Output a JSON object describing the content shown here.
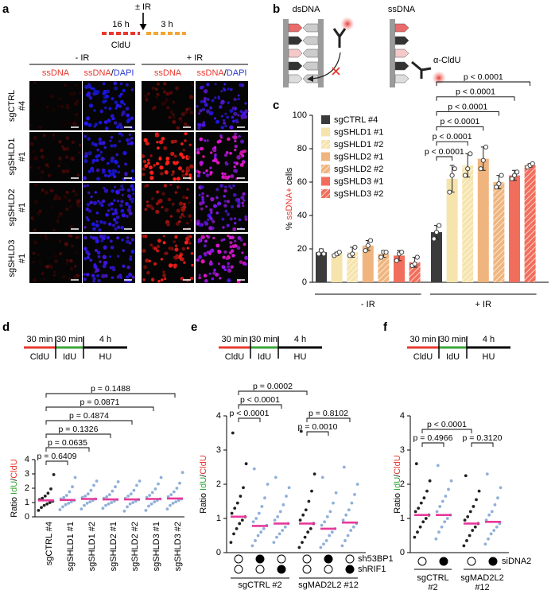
{
  "panel_a": {
    "label": "a",
    "treatment": "± IR",
    "times": [
      "16 h",
      "3 h"
    ],
    "pulse": "CldU",
    "conditions": [
      "- IR",
      "+ IR"
    ],
    "columns": [
      [
        "ssDNA"
      ],
      [
        "ssDNA",
        "/",
        "DAPI"
      ]
    ],
    "rows": [
      [
        "sgCTRL",
        "#4"
      ],
      [
        "sgSHLD1",
        "#1"
      ],
      [
        "sgSHLD2",
        "#1"
      ],
      [
        "sgSHLD3",
        "#1"
      ]
    ]
  },
  "panel_b": {
    "label": "b",
    "left": "dsDNA",
    "right": "ssDNA",
    "antibody": "α-CldU"
  },
  "chart_data": [
    {
      "type": "bar",
      "label": "c",
      "ylabel": [
        "% ",
        "ssDNA+",
        " cells"
      ],
      "ylabel_colors": [
        "#000000",
        "#e8382f",
        "#000000"
      ],
      "categories": [
        "- IR",
        "+ IR"
      ],
      "ylim": [
        0,
        100
      ],
      "yticks": [
        0,
        20,
        40,
        60,
        80,
        100
      ],
      "series": [
        {
          "name": "sgCTRL #4",
          "color": "#3b3b3b",
          "hatched": false,
          "values": [
            18,
            30
          ],
          "errors": [
            2,
            4
          ],
          "points": [
            [
              17,
              19,
              17
            ],
            [
              26,
              30,
              34
            ]
          ]
        },
        {
          "name": "sgSHLD1 #1",
          "color": "#f6e4ad",
          "hatched": false,
          "values": [
            17,
            62
          ],
          "errors": [
            1,
            8
          ],
          "points": [
            [
              16,
              17,
              18
            ],
            [
              54,
              64,
              68
            ]
          ]
        },
        {
          "name": "sgSHLD1 #2",
          "color": "#f6e4ad",
          "hatched": true,
          "values": [
            18,
            70
          ],
          "errors": [
            3,
            7
          ],
          "points": [
            [
              16,
              17,
              21
            ],
            [
              64,
              68,
              77
            ]
          ]
        },
        {
          "name": "sgSHLD2 #1",
          "color": "#f0b57e",
          "hatched": false,
          "values": [
            22,
            74
          ],
          "errors": [
            3,
            7
          ],
          "points": [
            [
              19,
              22,
              25
            ],
            [
              68,
              73,
              81
            ]
          ]
        },
        {
          "name": "sgSHLD2 #2",
          "color": "#f0b57e",
          "hatched": true,
          "values": [
            17,
            60
          ],
          "errors": [
            2,
            4
          ],
          "points": [
            [
              15,
              18,
              18
            ],
            [
              57,
              59,
              64
            ]
          ]
        },
        {
          "name": "sgSHLD3 #1",
          "color": "#f26e5c",
          "hatched": false,
          "values": [
            16,
            64
          ],
          "errors": [
            3,
            3
          ],
          "points": [
            [
              13,
              17,
              18
            ],
            [
              62,
              64,
              66
            ]
          ]
        },
        {
          "name": "sgSHLD3 #2",
          "color": "#f26e5c",
          "hatched": true,
          "values": [
            12,
            70
          ],
          "errors": [
            3,
            1
          ],
          "points": [
            [
              10,
              11,
              15
            ],
            [
              69,
              70,
              71
            ]
          ]
        }
      ],
      "annotations": [
        "p < 0.0001",
        "p < 0.0001",
        "p < 0.0001",
        "p < 0.0001",
        "p < 0.0001",
        "p < 0.0001"
      ]
    },
    {
      "type": "dot",
      "label": "d",
      "schematic": [
        {
          "top": "30 min",
          "bottom": "CldU",
          "color": "#e8382f"
        },
        {
          "top": "30 min",
          "bottom": "IdU",
          "color": "#3aa639"
        },
        {
          "top": "4 h",
          "bottom": "HU",
          "color": "#000000"
        }
      ],
      "ylabel": [
        "Ratio ",
        "IdU",
        "/",
        "CldU"
      ],
      "ylabel_colors": [
        "#000000",
        "#3aa639",
        "#000000",
        "#e8382f"
      ],
      "ylim": [
        0,
        4
      ],
      "yticks": [
        0,
        1,
        2,
        3,
        4
      ],
      "categories": [
        "sgCTRL #4",
        "sgSHLD1 #1",
        "sgSHLD1 #2",
        "sgSHLD2 #1",
        "sgSHLD2 #2",
        "sgSHLD3 #1",
        "sgSHLD3 #2"
      ],
      "colors": [
        "#222222",
        "#8fb0d8",
        "#8fb0d8",
        "#8fb0d8",
        "#8fb0d8",
        "#8fb0d8",
        "#8fb0d8"
      ],
      "mean_color": "#e6399b",
      "means": [
        1.15,
        1.18,
        1.25,
        1.22,
        1.22,
        1.25,
        1.28
      ],
      "points": [
        [
          0.45,
          0.65,
          0.8,
          0.9,
          1.0,
          1.1,
          1.2,
          1.3,
          1.45,
          1.65,
          1.95,
          2.95
        ],
        [
          0.5,
          0.7,
          0.85,
          0.95,
          1.05,
          1.15,
          1.25,
          1.35,
          1.5,
          1.75,
          2.1,
          2.75
        ],
        [
          0.55,
          0.8,
          0.95,
          1.05,
          1.15,
          1.25,
          1.35,
          1.45,
          1.6,
          1.85,
          2.2,
          2.5
        ],
        [
          0.6,
          0.8,
          0.9,
          1.0,
          1.1,
          1.2,
          1.3,
          1.4,
          1.55,
          1.8,
          2.1,
          2.45
        ],
        [
          0.4,
          0.7,
          0.9,
          1.0,
          1.1,
          1.2,
          1.3,
          1.45,
          1.6,
          1.85,
          2.2,
          2.5
        ],
        [
          0.45,
          0.75,
          0.9,
          1.05,
          1.15,
          1.25,
          1.35,
          1.5,
          1.7,
          1.95,
          2.3,
          2.75
        ],
        [
          0.55,
          0.8,
          0.95,
          1.05,
          1.15,
          1.25,
          1.4,
          1.55,
          1.75,
          2.0,
          2.35,
          3.1
        ]
      ],
      "annotations": [
        "p = 0.6409",
        "p = 0.0635",
        "p = 0.1326",
        "p = 0.4874",
        "p = 0.0871",
        "p = 0.1488"
      ]
    },
    {
      "type": "dot",
      "label": "e",
      "schematic": [
        {
          "top": "30 min",
          "bottom": "CldU",
          "color": "#e8382f"
        },
        {
          "top": "30 min",
          "bottom": "IdU",
          "color": "#3aa639"
        },
        {
          "top": "4 h",
          "bottom": "HU",
          "color": "#000000"
        }
      ],
      "ylabel": [
        "Ratio ",
        "IdU",
        "/",
        "CldU"
      ],
      "ylabel_colors": [
        "#000000",
        "#3aa639",
        "#000000",
        "#e8382f"
      ],
      "ylim": [
        0,
        4
      ],
      "yticks": [
        0,
        1,
        2,
        3,
        4
      ],
      "colors": [
        "#222222",
        "#8fb0d8",
        "#8fb0d8",
        "#222222",
        "#8fb0d8",
        "#8fb0d8"
      ],
      "mean_color": "#e6399b",
      "means": [
        1.05,
        0.78,
        0.85,
        0.85,
        0.7,
        0.88
      ],
      "points": [
        [
          0.3,
          0.55,
          0.7,
          0.85,
          0.95,
          1.05,
          1.15,
          1.3,
          1.45,
          1.65,
          1.9,
          2.6,
          3.5
        ],
        [
          0.2,
          0.35,
          0.5,
          0.6,
          0.7,
          0.8,
          0.9,
          1.0,
          1.15,
          1.35,
          1.6,
          2.0,
          2.45
        ],
        [
          0.3,
          0.45,
          0.55,
          0.65,
          0.75,
          0.85,
          0.95,
          1.05,
          1.2,
          1.4,
          1.65,
          1.9,
          2.2
        ],
        [
          0.15,
          0.3,
          0.45,
          0.6,
          0.7,
          0.85,
          0.95,
          1.1,
          1.25,
          1.5,
          1.8,
          2.3,
          3.55
        ],
        [
          0.15,
          0.25,
          0.35,
          0.5,
          0.6,
          0.7,
          0.8,
          0.9,
          1.05,
          1.2,
          1.45,
          1.75,
          2.2
        ],
        [
          0.2,
          0.35,
          0.5,
          0.65,
          0.75,
          0.85,
          0.95,
          1.1,
          1.25,
          1.45,
          1.7,
          2.0,
          2.5
        ]
      ],
      "conditions": [
        {
          "name": "sh53BP1",
          "values": [
            false,
            true,
            false,
            false,
            true,
            false
          ]
        },
        {
          "name": "shRIF1",
          "values": [
            false,
            false,
            true,
            false,
            false,
            true
          ]
        }
      ],
      "groups": [
        [
          "sgCTRL #2"
        ],
        [
          "sgMAD2L2 #12"
        ]
      ],
      "annotations": [
        "p = 0.0002",
        "p < 0.0001",
        "p < 0.0001",
        "p = 0.8102",
        "p = 0.0010"
      ]
    },
    {
      "type": "dot",
      "label": "f",
      "schematic": [
        {
          "top": "30 min",
          "bottom": "CldU",
          "color": "#e8382f"
        },
        {
          "top": "30 min",
          "bottom": "IdU",
          "color": "#3aa639"
        },
        {
          "top": "4 h",
          "bottom": "HU",
          "color": "#000000"
        }
      ],
      "ylabel": [
        "Ratio ",
        "IdU",
        "/",
        "CldU"
      ],
      "ylabel_colors": [
        "#000000",
        "#3aa639",
        "#000000",
        "#e8382f"
      ],
      "ylim": [
        0,
        4
      ],
      "yticks": [
        0,
        1,
        2,
        3,
        4
      ],
      "colors": [
        "#222222",
        "#8fb0d8",
        "#222222",
        "#8fb0d8"
      ],
      "mean_color": "#e6399b",
      "means": [
        1.1,
        1.1,
        0.85,
        0.9
      ],
      "points": [
        [
          0.45,
          0.6,
          0.75,
          0.9,
          1.0,
          1.1,
          1.2,
          1.3,
          1.45,
          1.6,
          1.8,
          2.1,
          2.6
        ],
        [
          0.4,
          0.6,
          0.75,
          0.9,
          1.0,
          1.1,
          1.2,
          1.35,
          1.5,
          1.65,
          1.85,
          2.1,
          2.55
        ],
        [
          0.2,
          0.35,
          0.5,
          0.65,
          0.75,
          0.85,
          0.95,
          1.05,
          1.2,
          1.35,
          1.55,
          1.8,
          2.25
        ],
        [
          0.25,
          0.4,
          0.55,
          0.65,
          0.75,
          0.85,
          0.95,
          1.1,
          1.2,
          1.4,
          1.6,
          1.9,
          2.3
        ]
      ],
      "conditions": [
        {
          "name": "siDNA2",
          "values": [
            false,
            true,
            false,
            true
          ]
        }
      ],
      "groups": [
        [
          "sgCTRL",
          "#2"
        ],
        [
          "sgMAD2L2",
          "#12"
        ]
      ],
      "annotations": [
        "p < 0.0001",
        "p = 0.4966",
        "p = 0.3120"
      ]
    }
  ]
}
